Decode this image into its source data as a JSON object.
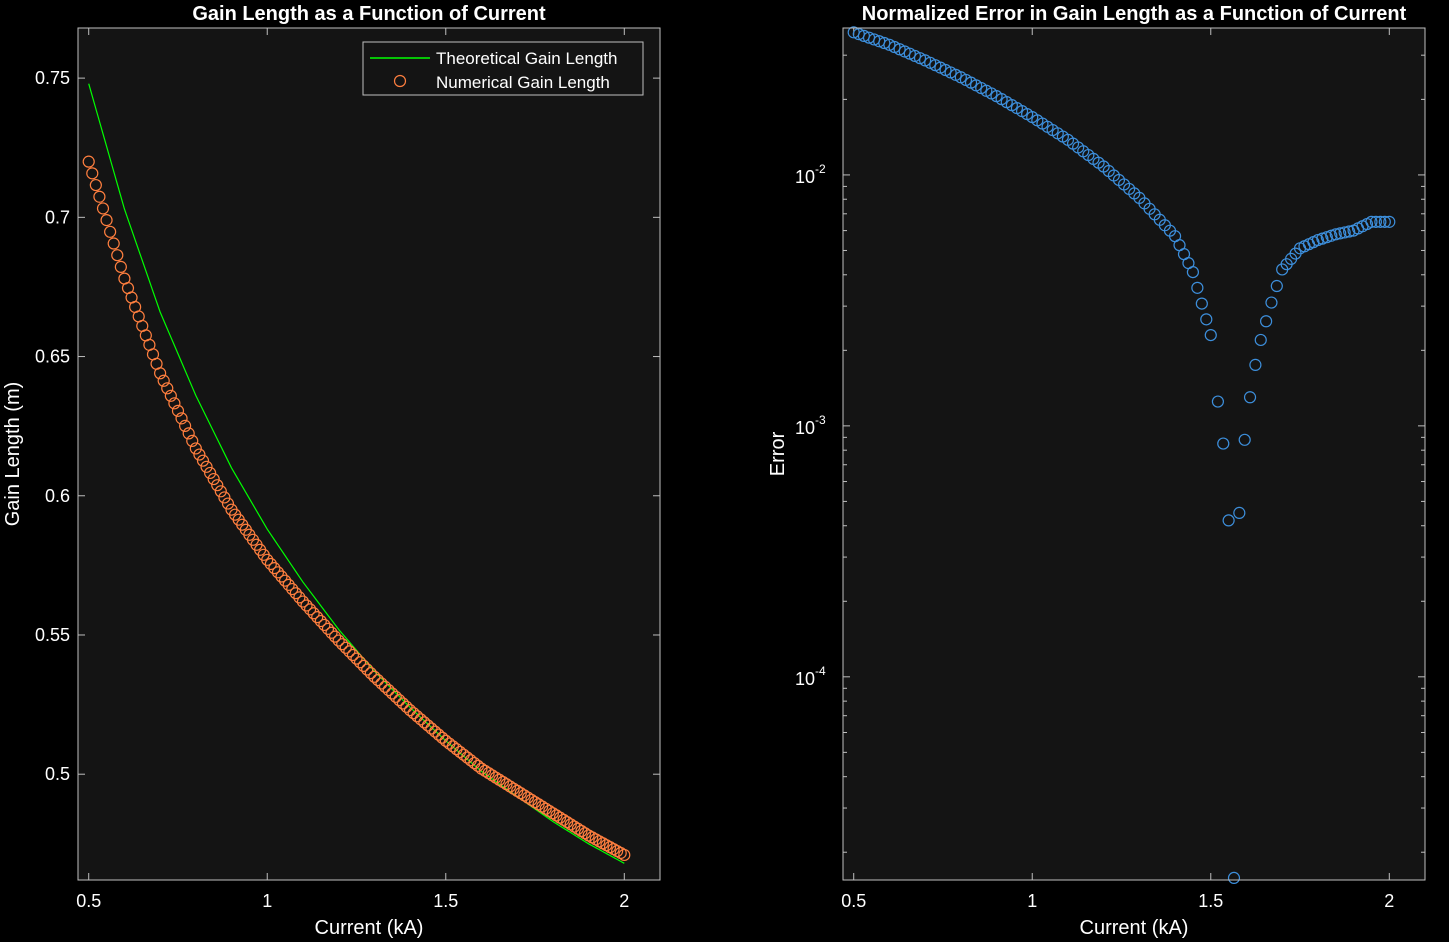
{
  "chart_data": [
    {
      "type": "line",
      "title": "Gain Length as a Function of Current",
      "xlabel": "Current (kA)",
      "ylabel": "Gain Length (m)",
      "xlim": [
        0.47,
        2.1
      ],
      "ylim": [
        0.462,
        0.768
      ],
      "xticks": [
        0.5,
        1,
        1.5,
        2
      ],
      "xtick_labels": [
        "0.5",
        "1",
        "1.5",
        "2"
      ],
      "yticks": [
        0.5,
        0.55,
        0.6,
        0.65,
        0.7,
        0.75
      ],
      "ytick_labels": [
        "0.5",
        "0.55",
        "0.6",
        "0.65",
        "0.7",
        "0.75"
      ],
      "grid": false,
      "legend": "top-right",
      "background": "#141414",
      "series": [
        {
          "name": "Theoretical Gain Length",
          "style": "line",
          "color": "#00ff00",
          "x": [
            0.5,
            0.6,
            0.7,
            0.8,
            0.9,
            1.0,
            1.1,
            1.2,
            1.3,
            1.4,
            1.5,
            1.6,
            1.7,
            1.8,
            1.9,
            2.0
          ],
          "y": [
            0.748,
            0.703,
            0.666,
            0.636,
            0.61,
            0.588,
            0.569,
            0.552,
            0.537,
            0.524,
            0.512,
            0.501,
            0.492,
            0.483,
            0.475,
            0.468
          ]
        },
        {
          "name": "Numerical Gain Length",
          "style": "markers",
          "color": "#ff7f3f",
          "x": [
            0.5,
            0.6,
            0.7,
            0.8,
            0.9,
            1.0,
            1.1,
            1.2,
            1.3,
            1.4,
            1.5,
            1.6,
            1.7,
            1.8,
            1.9,
            2.0
          ],
          "y": [
            0.72,
            0.678,
            0.644,
            0.617,
            0.595,
            0.577,
            0.562,
            0.548,
            0.535,
            0.523,
            0.512,
            0.502,
            0.494,
            0.486,
            0.478,
            0.471
          ]
        }
      ]
    },
    {
      "type": "scatter",
      "title": "Normalized Error in Gain Length as a Function of Current",
      "xlabel": "Current (kA)",
      "ylabel": "Error",
      "xlim": [
        0.47,
        2.1
      ],
      "ylim": [
        1.55e-05,
        0.0385
      ],
      "yscale": "log",
      "xticks": [
        0.5,
        1,
        1.5,
        2
      ],
      "xtick_labels": [
        "0.5",
        "1",
        "1.5",
        "2"
      ],
      "yticks": [
        0.0001,
        0.001,
        0.01
      ],
      "ytick_labels": [
        {
          "base": "10",
          "exp": "-4"
        },
        {
          "base": "10",
          "exp": "-3"
        },
        {
          "base": "10",
          "exp": "-2"
        }
      ],
      "grid": false,
      "background": "#141414",
      "series": [
        {
          "style": "markers",
          "color": "#3d8fdc",
          "x": [
            0.5,
            0.6,
            0.7,
            0.8,
            0.9,
            1.0,
            1.1,
            1.2,
            1.3,
            1.4,
            1.45,
            1.5,
            1.52,
            1.535,
            1.55,
            1.565,
            1.58,
            1.595,
            1.61,
            1.625,
            1.64,
            1.67,
            1.7,
            1.75,
            1.8,
            1.85,
            1.9,
            1.95,
            2.0
          ],
          "y": [
            0.037,
            0.033,
            0.0286,
            0.0245,
            0.0206,
            0.017,
            0.0138,
            0.0108,
            0.0081,
            0.0057,
            0.0041,
            0.0023,
            0.00125,
            0.00085,
            0.00042,
            1.58e-05,
            0.00045,
            0.00088,
            0.0013,
            0.00175,
            0.0022,
            0.0031,
            0.0042,
            0.0051,
            0.0055,
            0.0058,
            0.006,
            0.0065,
            0.0065
          ]
        }
      ]
    }
  ]
}
